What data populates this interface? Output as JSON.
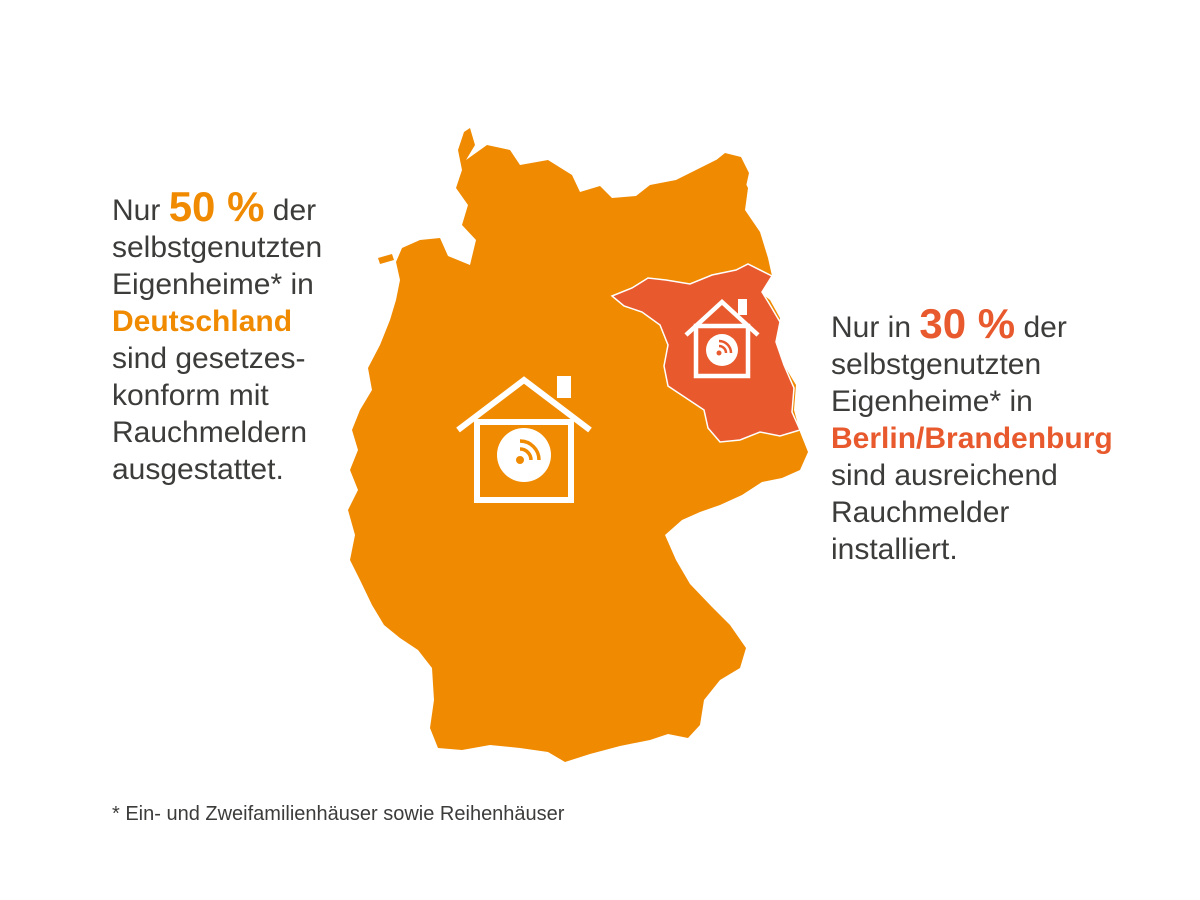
{
  "colors": {
    "germany": "#f08a00",
    "berlin_brandenburg": "#e85a2e",
    "text": "#3c3c3b",
    "icon": "#ffffff"
  },
  "icons": {
    "germany_house": "house-with-smoke-detector",
    "brandenburg_house": "house-with-smoke-detector"
  },
  "left": {
    "prefix": "Nur",
    "percent": "50 %",
    "suffix": "der",
    "line2": "selbstgenutzten",
    "line3": "Eigenheime* in",
    "region": "Deutschland",
    "line5": "sind gesetzes-",
    "line6": "konform mit",
    "line7": "Rauchmeldern",
    "line8": "ausgestattet."
  },
  "right": {
    "prefix": "Nur in",
    "percent": "30 %",
    "suffix": "der",
    "line2": "selbstgenutzten",
    "line3": "Eigenheime* in",
    "region": "Berlin/Brandenburg",
    "line5": "sind ausreichend",
    "line6": "Rauchmelder",
    "line7": "installiert."
  },
  "footnote": "* Ein- und Zweifamilienhäuser sowie Reihenhäuser"
}
